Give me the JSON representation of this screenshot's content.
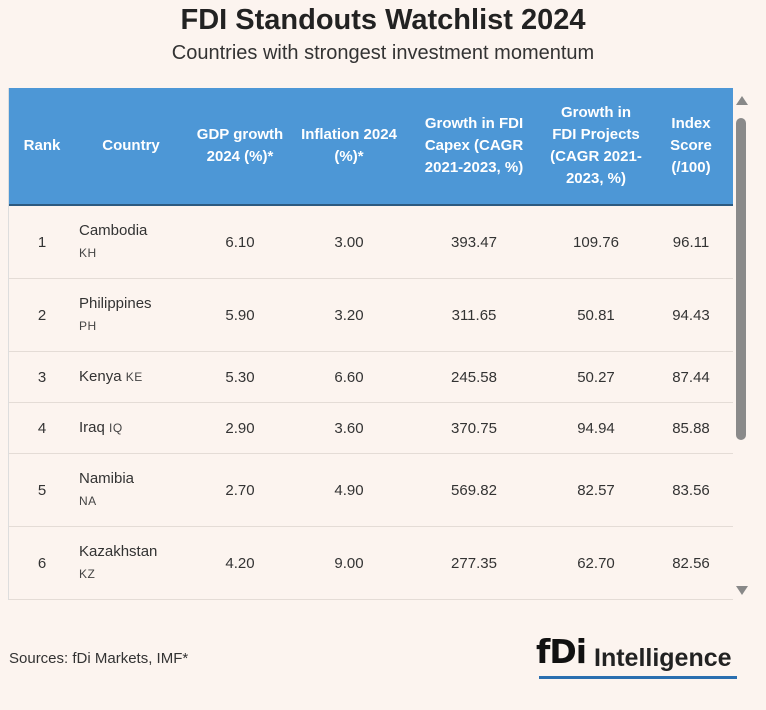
{
  "title": "FDI Standouts Watchlist 2024",
  "subtitle": "Countries with strongest investment momentum",
  "columns": [
    {
      "label": "Rank"
    },
    {
      "label": "Country"
    },
    {
      "label": "GDP growth 2024 (%)*"
    },
    {
      "label": "Inflation 2024 (%)*"
    },
    {
      "label": "Growth in FDI Capex (CAGR 2021-2023, %)"
    },
    {
      "label": "Growth in FDI Projects (CAGR 2021-2023, %)"
    },
    {
      "label": "Index Score (/100)"
    }
  ],
  "rows": [
    {
      "rank": "1",
      "country": "Cambodia",
      "code": "KH",
      "gdp": "6.10",
      "inflation": "3.00",
      "capex": "393.47",
      "projects": "109.76",
      "score": "96.11"
    },
    {
      "rank": "2",
      "country": "Philippines",
      "code": "PH",
      "gdp": "5.90",
      "inflation": "3.20",
      "capex": "311.65",
      "projects": "50.81",
      "score": "94.43"
    },
    {
      "rank": "3",
      "country": "Kenya",
      "code": "KE",
      "gdp": "5.30",
      "inflation": "6.60",
      "capex": "245.58",
      "projects": "50.27",
      "score": "87.44"
    },
    {
      "rank": "4",
      "country": "Iraq",
      "code": "IQ",
      "gdp": "2.90",
      "inflation": "3.60",
      "capex": "370.75",
      "projects": "94.94",
      "score": "85.88"
    },
    {
      "rank": "5",
      "country": "Namibia",
      "code": "NA",
      "gdp": "2.70",
      "inflation": "4.90",
      "capex": "569.82",
      "projects": "82.57",
      "score": "83.56"
    },
    {
      "rank": "6",
      "country": "Kazakhstan",
      "code": "KZ",
      "gdp": "4.20",
      "inflation": "9.00",
      "capex": "277.35",
      "projects": "62.70",
      "score": "82.56"
    }
  ],
  "footer": {
    "sources": "Sources: fDi Markets, IMF*",
    "logo_mark": "fDi",
    "logo_word": "Intelligence"
  },
  "colors": {
    "header_bg": "#4d97d6",
    "page_bg": "#fcf4ef",
    "logo_underline": "#2a6fb0"
  }
}
